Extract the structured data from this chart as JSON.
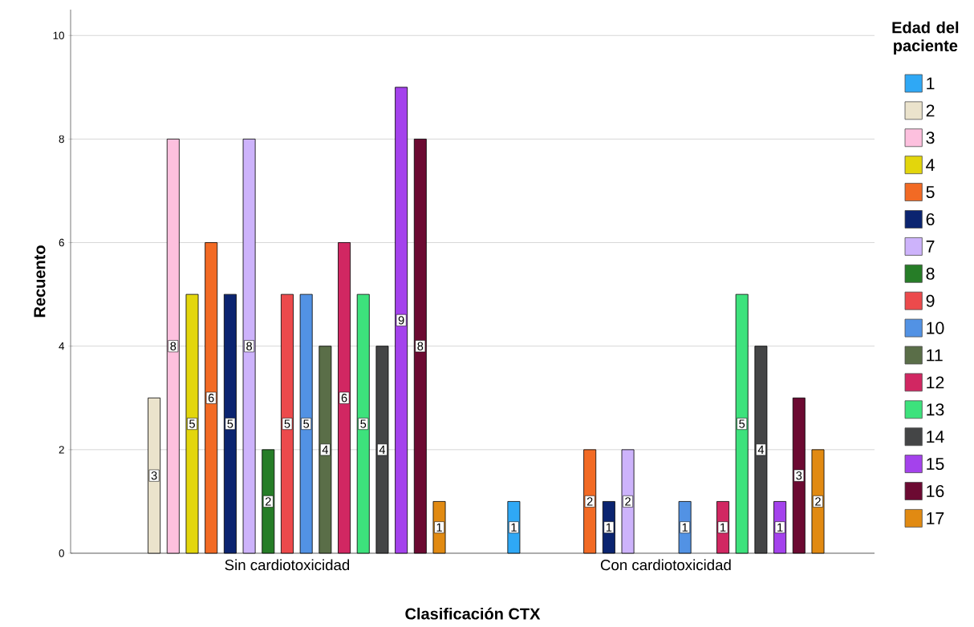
{
  "chart_data": {
    "type": "bar",
    "xlabel": "Clasificación CTX",
    "ylabel": "Recuento",
    "legend_title": "Edad del paciente",
    "categories": [
      "Sin cardiotoxicidad",
      "Con cardiotoxicidad"
    ],
    "series": [
      {
        "name": "1",
        "color": "#2fa8f5",
        "values": [
          null,
          1
        ]
      },
      {
        "name": "2",
        "color": "#ebe3cc",
        "values": [
          3,
          null
        ]
      },
      {
        "name": "3",
        "color": "#fdc0de",
        "values": [
          8,
          null
        ]
      },
      {
        "name": "4",
        "color": "#e3d60c",
        "values": [
          5,
          null
        ]
      },
      {
        "name": "5",
        "color": "#f26a24",
        "values": [
          6,
          2
        ]
      },
      {
        "name": "6",
        "color": "#0b2470",
        "values": [
          5,
          1
        ]
      },
      {
        "name": "7",
        "color": "#cdb3fb",
        "values": [
          8,
          2
        ]
      },
      {
        "name": "8",
        "color": "#267d27",
        "values": [
          2,
          null
        ]
      },
      {
        "name": "9",
        "color": "#ec4a4c",
        "values": [
          5,
          null
        ]
      },
      {
        "name": "10",
        "color": "#5292e4",
        "values": [
          5,
          1
        ]
      },
      {
        "name": "11",
        "color": "#5a6e48",
        "values": [
          4,
          null
        ]
      },
      {
        "name": "12",
        "color": "#d12762",
        "values": [
          6,
          1
        ]
      },
      {
        "name": "13",
        "color": "#3de27c",
        "values": [
          5,
          5
        ]
      },
      {
        "name": "14",
        "color": "#444546",
        "values": [
          4,
          4
        ]
      },
      {
        "name": "15",
        "color": "#a442ec",
        "values": [
          9,
          1
        ]
      },
      {
        "name": "16",
        "color": "#6c0a32",
        "values": [
          8,
          3
        ]
      },
      {
        "name": "17",
        "color": "#e18a12",
        "values": [
          1,
          2
        ]
      }
    ],
    "ylim": [
      0,
      10.5
    ],
    "yticks": [
      0,
      2,
      4,
      6,
      8,
      10
    ],
    "grid": "y",
    "legend": "right",
    "data_labels": true
  }
}
